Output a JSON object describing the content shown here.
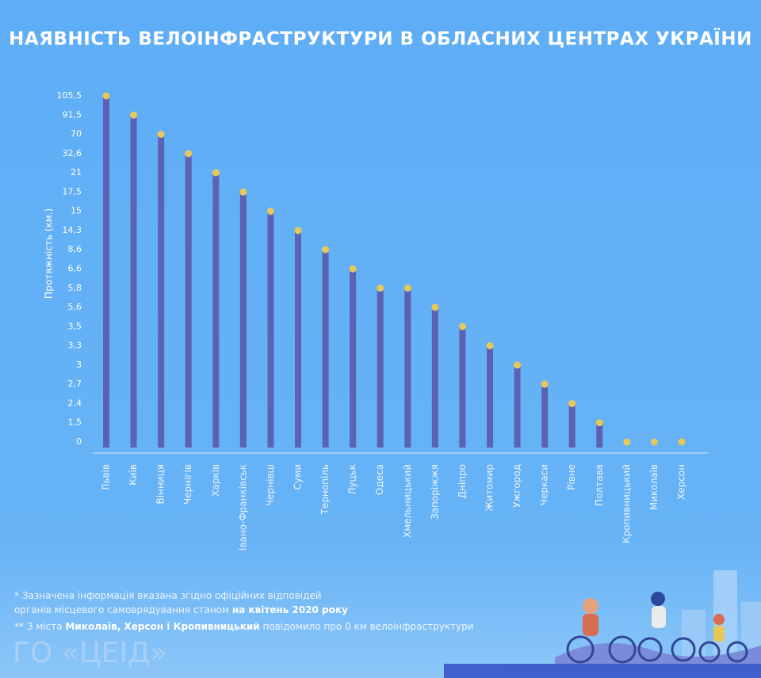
{
  "chart_data": {
    "type": "bar",
    "title": "НАЯВНІСТЬ ВЕЛОІНФРАСТРУКТУРИ В ОБЛАСНИХ ЦЕНТРАХ УКРАЇНИ",
    "y_label": "Протяжність (км.)",
    "categories": [
      "Львів",
      "Київ",
      "Вінниця",
      "Чернігів",
      "Харків",
      "Івано-Франківськ",
      "Чернівці",
      "Суми",
      "Тернопіль",
      "Луцьк",
      "Одеса",
      "Хмельницький",
      "Запоріжжя",
      "Дніпро",
      "Житомир",
      "Ужгород",
      "Черкаси",
      "Рівне",
      "Полтава",
      "Кропивницький",
      "Миколаїв",
      "Херсон"
    ],
    "values": [
      105.5,
      91.5,
      70,
      32.6,
      21,
      17.5,
      15,
      14.3,
      8.6,
      6.6,
      5.8,
      5.8,
      5.6,
      3.5,
      3.3,
      3,
      2.7,
      2.4,
      1.5,
      0,
      0,
      0
    ],
    "color": "#5b62b3",
    "marker_color": "#e9c85b",
    "ylim": [
      0,
      105.5
    ],
    "yticks": [
      0,
      {
        "value": 1.5,
        "label": "1,5"
      },
      {
        "value": 2.4,
        "label": "2,4"
      },
      {
        "value": 2.7,
        "label": "2,7"
      },
      3,
      {
        "value": 3.3,
        "label": "3,3"
      },
      {
        "value": 3.5,
        "label": "3,5"
      },
      {
        "value": 5.6,
        "label": "5,6"
      },
      {
        "value": 5.8,
        "label": "5,8"
      },
      {
        "value": 6.6,
        "label": "6,6"
      },
      {
        "value": 8.6,
        "label": "8,6"
      },
      {
        "value": 14.3,
        "label": "14,3"
      },
      15,
      {
        "value": 17.5,
        "label": "17,5"
      },
      21,
      {
        "value": 32.6,
        "label": "32,6"
      },
      70,
      {
        "value": 91.5,
        "label": "91,5"
      },
      {
        "value": 105.5,
        "label": "105,5"
      }
    ]
  },
  "footnotes": [
    {
      "parts": [
        "* Зазначена інформація вказана згідно офіційних відповідей",
        "органів місцевого самоврядування станом ",
        "на квітень 2020 року"
      ]
    },
    {
      "parts": [
        "** З міста ",
        "Миколаїв, Херсон і Кропивницький",
        " повідомило про 0 км велоінфраструктури"
      ]
    }
  ],
  "logo": "ГО «ЦЕІД»"
}
